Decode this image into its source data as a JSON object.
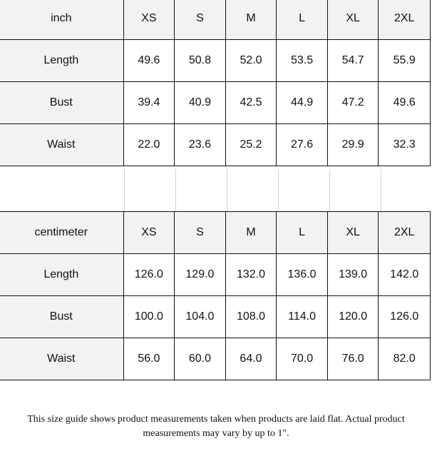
{
  "inch_table": {
    "unit": "inch",
    "sizes": [
      "XS",
      "S",
      "M",
      "L",
      "XL",
      "2XL"
    ],
    "rows": [
      {
        "label": "Length",
        "values": [
          "49.6",
          "50.8",
          "52.0",
          "53.5",
          "54.7",
          "55.9"
        ]
      },
      {
        "label": "Bust",
        "values": [
          "39.4",
          "40.9",
          "42.5",
          "44.9",
          "47.2",
          "49.6"
        ]
      },
      {
        "label": "Waist",
        "values": [
          "22.0",
          "23.6",
          "25.2",
          "27.6",
          "29.9",
          "32.3"
        ]
      }
    ]
  },
  "cm_table": {
    "unit": "centimeter",
    "sizes": [
      "XS",
      "S",
      "M",
      "L",
      "XL",
      "2XL"
    ],
    "rows": [
      {
        "label": "Length",
        "values": [
          "126.0",
          "129.0",
          "132.0",
          "136.0",
          "139.0",
          "142.0"
        ]
      },
      {
        "label": "Bust",
        "values": [
          "100.0",
          "104.0",
          "108.0",
          "114.0",
          "120.0",
          "126.0"
        ]
      },
      {
        "label": "Waist",
        "values": [
          "56.0",
          "60.0",
          "64.0",
          "70.0",
          "76.0",
          "82.0"
        ]
      }
    ]
  },
  "note": "This size guide shows product measurements taken when products are laid flat. Actual product measurements may vary by up to 1\"."
}
